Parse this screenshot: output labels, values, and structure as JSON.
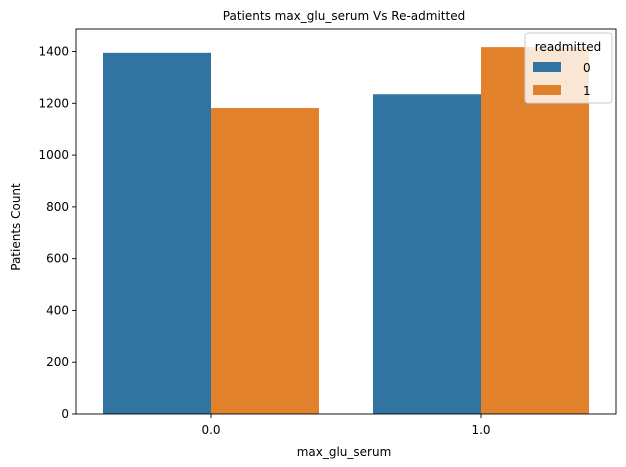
{
  "chart_data": {
    "type": "bar",
    "title": "Patients max_glu_serum Vs Re-admitted",
    "xlabel": "max_glu_serum",
    "ylabel": "Patients Count",
    "categories": [
      "0.0",
      "1.0"
    ],
    "series": [
      {
        "name": "0",
        "values": [
          1395,
          1235
        ],
        "color": "#3274a1"
      },
      {
        "name": "1",
        "values": [
          1182,
          1417
        ],
        "color": "#e1812c"
      }
    ],
    "ylim": [
      0,
      1487
    ],
    "yticks": [
      0,
      200,
      400,
      600,
      800,
      1000,
      1200,
      1400
    ],
    "legend": {
      "title": "readmitted",
      "position": "top-right"
    },
    "grid": false
  }
}
